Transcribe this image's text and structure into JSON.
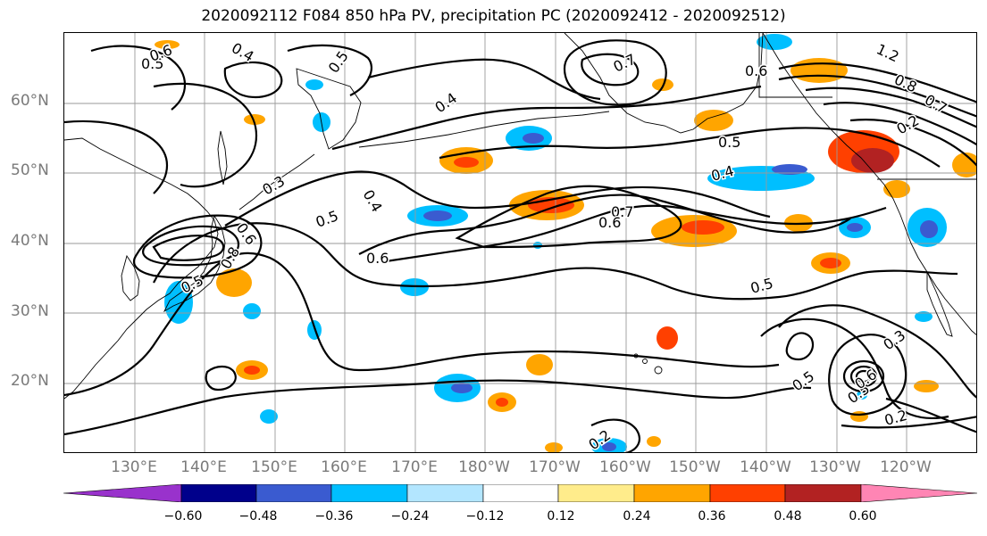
{
  "title": "2020092112 F084 850 hPa PV, precipitation PC (2020092412 - 2020092512)",
  "lat_labels": [
    "60°N",
    "50°N",
    "40°N",
    "30°N",
    "20°N"
  ],
  "lon_labels": [
    "130°E",
    "140°E",
    "150°E",
    "160°E",
    "170°E",
    "180°W",
    "170°W",
    "160°W",
    "150°W",
    "140°W",
    "130°W",
    "120°W"
  ],
  "colorbar": {
    "colors": [
      "#9932cc",
      "#00008b",
      "#3a5bd0",
      "#00bfff",
      "#b3e6ff",
      "#ffffff",
      "#ffec8b",
      "#ffa500",
      "#ff4000",
      "#b22222",
      "#ff85b4"
    ],
    "tick_labels": [
      "−0.60",
      "−0.48",
      "−0.36",
      "−0.24",
      "−0.12",
      "0.12",
      "0.24",
      "0.36",
      "0.48",
      "0.60"
    ]
  },
  "contour_labels": [
    "0.4",
    "0.5",
    "0.6",
    "0.7",
    "0.5",
    "0.6",
    "0.4",
    "0.7",
    "0.5",
    "0.4",
    "1.2",
    "0.8",
    "0.2",
    "0.3",
    "0.6",
    "0.5",
    "0.4",
    "0.5",
    "0.6",
    "0.7",
    "0.6",
    "0.5",
    "0.8",
    "0.5",
    "0.3",
    "0.5",
    "0.6",
    "0.2",
    "0.2"
  ]
}
